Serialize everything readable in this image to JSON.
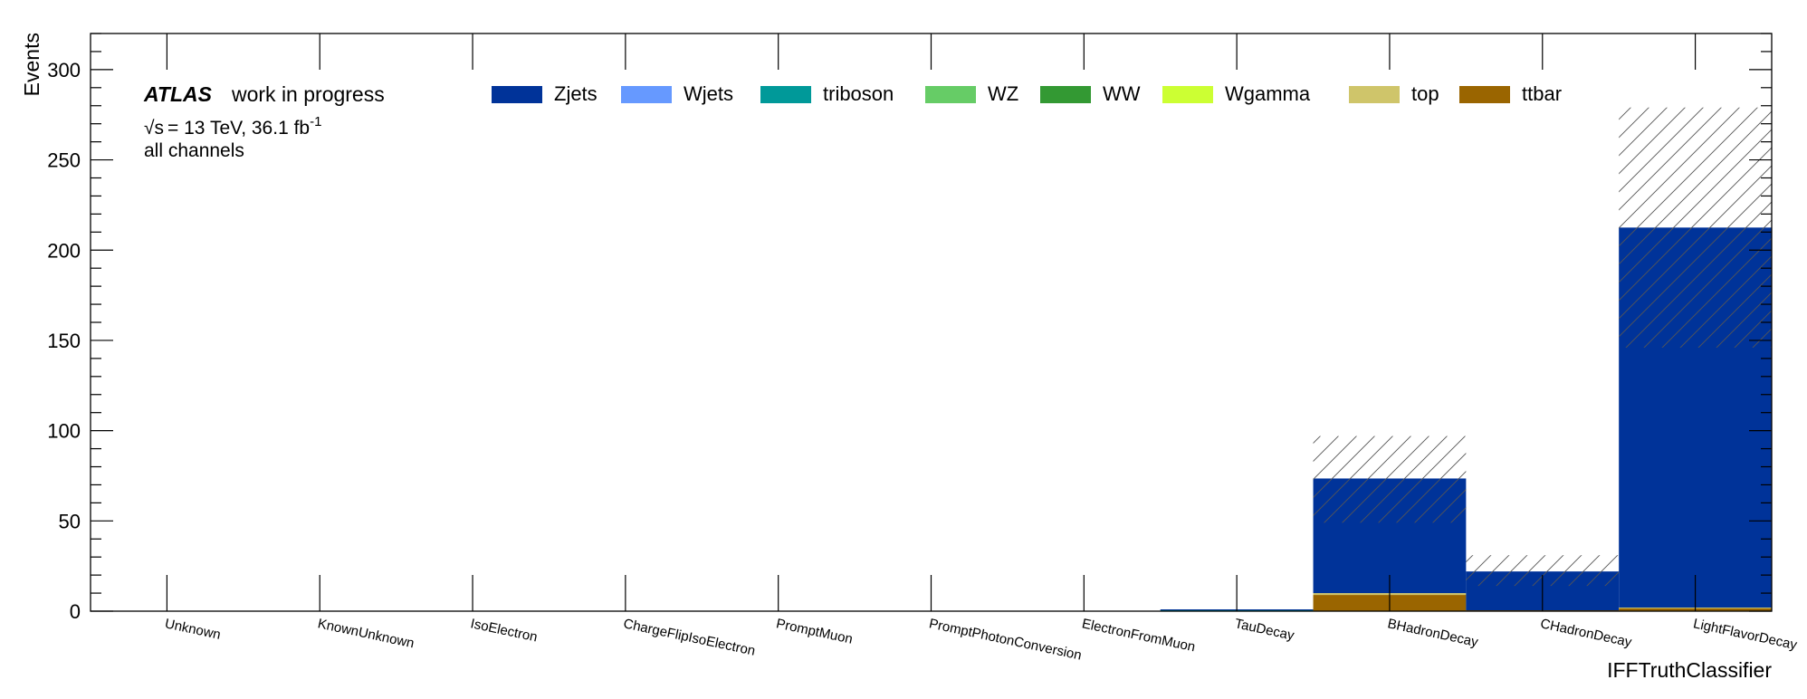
{
  "chart_data": {
    "type": "bar",
    "stacked": true,
    "title": "",
    "xlabel": "IFFTruthClassifier",
    "ylabel": "Events",
    "ylim": [
      0,
      320
    ],
    "yticks": [
      0,
      50,
      100,
      150,
      200,
      250,
      300
    ],
    "grid": false,
    "legend_position": "top",
    "categories": [
      "Unknown",
      "KnownUnknown",
      "IsoElectron",
      "ChargeFlipIsoElectron",
      "PromptMuon",
      "PromptPhotonConversion",
      "ElectronFromMuon",
      "TauDecay",
      "BHadronDecay",
      "CHadronDecay",
      "LightFlavorDecay"
    ],
    "series": [
      {
        "name": "ttbar",
        "color": "#9a6500",
        "values": [
          0,
          0,
          0,
          0,
          0,
          0,
          0,
          0,
          9,
          0.5,
          1.5
        ]
      },
      {
        "name": "top",
        "color": "#cfc56a",
        "values": [
          0,
          0,
          0,
          0,
          0,
          0,
          0,
          0,
          1,
          0,
          0.5
        ]
      },
      {
        "name": "Wgamma",
        "color": "#ccff33",
        "values": [
          0,
          0,
          0,
          0,
          0,
          0,
          0,
          0,
          0,
          0,
          0
        ]
      },
      {
        "name": "WW",
        "color": "#339933",
        "values": [
          0,
          0,
          0,
          0,
          0,
          0,
          0,
          0,
          0,
          0,
          0
        ]
      },
      {
        "name": "WZ",
        "color": "#66cc66",
        "values": [
          0,
          0,
          0,
          0,
          0,
          0,
          0,
          0,
          0,
          0,
          0
        ]
      },
      {
        "name": "triboson",
        "color": "#009999",
        "values": [
          0,
          0,
          0,
          0,
          0,
          0,
          0,
          0.5,
          0,
          0,
          0
        ]
      },
      {
        "name": "Wjets",
        "color": "#6699ff",
        "values": [
          0,
          0,
          0,
          0,
          0,
          0,
          0,
          0,
          0,
          0,
          0
        ]
      },
      {
        "name": "Zjets",
        "color": "#003399",
        "values": [
          0,
          0,
          0,
          0,
          0,
          0,
          0,
          0.5,
          63.5,
          21.5,
          210.5
        ]
      }
    ],
    "uncertainty_band": [
      {
        "category": "BHadronDecay",
        "low": 49,
        "high": 97
      },
      {
        "category": "CHadronDecay",
        "low": 14,
        "high": 31
      },
      {
        "category": "LightFlavorDecay",
        "low": 146,
        "high": 279
      }
    ],
    "annotations": {
      "experiment": "ATLAS",
      "status": "work in progress",
      "energy_sqrt": "√s",
      "energy_rest": "= 13 TeV, 36.1 fb",
      "lumi_exp": "-1",
      "channel": "all channels"
    },
    "legend_order": [
      "Zjets",
      "Wjets",
      "triboson",
      "WZ",
      "WW",
      "Wgamma",
      "top",
      "ttbar"
    ]
  }
}
